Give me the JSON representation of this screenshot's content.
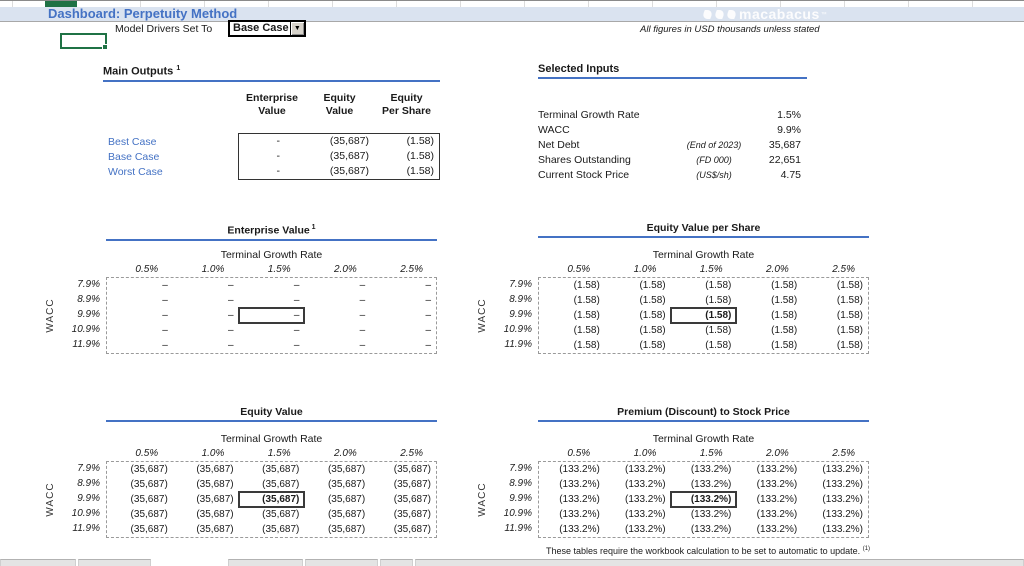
{
  "header": {
    "title": "Dashboard: Perpetuity Method",
    "logo_text": "macabacus",
    "logo_tm": "™",
    "model_drivers_label": "Model Drivers Set To",
    "model_drivers_value": "Base Case",
    "dropdown_arrow": "▼",
    "figures_note": "All figures in USD thousands unless stated"
  },
  "main_outputs": {
    "title": "Main Outputs",
    "title_sup": "1",
    "col_headers": [
      {
        "line1": "Enterprise",
        "line2": "Value"
      },
      {
        "line1": "Equity",
        "line2": "Value"
      },
      {
        "line1": "Equity",
        "line2": "Per Share"
      }
    ],
    "rows": [
      {
        "label": "Best Case",
        "ev": "-",
        "eqv": "(35,687)",
        "eps": "(1.58)"
      },
      {
        "label": "Base Case",
        "ev": "-",
        "eqv": "(35,687)",
        "eps": "(1.58)"
      },
      {
        "label": "Worst Case",
        "ev": "-",
        "eqv": "(35,687)",
        "eps": "(1.58)"
      }
    ]
  },
  "selected_inputs": {
    "title": "Selected Inputs",
    "rows": [
      {
        "label": "Terminal Growth Rate",
        "note": "",
        "value": "1.5%"
      },
      {
        "label": "WACC",
        "note": "",
        "value": "9.9%"
      },
      {
        "label": "Net Debt",
        "note": "(End of 2023)",
        "value": "35,687"
      },
      {
        "label": "Shares Outstanding",
        "note": "(FD 000)",
        "value": "22,651"
      },
      {
        "label": "Current Stock Price",
        "note": "(US$/sh)",
        "value": "4.75"
      }
    ]
  },
  "sens_common": {
    "col_axis_label": "Terminal Growth Rate",
    "row_axis_label": "WACC",
    "cols": [
      "0.5%",
      "1.0%",
      "1.5%",
      "2.0%",
      "2.5%"
    ],
    "rows": [
      "7.9%",
      "8.9%",
      "9.9%",
      "10.9%",
      "11.9%"
    ],
    "highlight_row": 2,
    "highlight_col": 2
  },
  "sens_tables": [
    {
      "key": "enterprise_value",
      "title": "Enterprise Value",
      "title_sup": "1",
      "cell": "–",
      "bold_center": false
    },
    {
      "key": "equity_value_per_share",
      "title": "Equity Value per Share",
      "title_sup": "",
      "cell": "(1.58)",
      "bold_center": true
    },
    {
      "key": "equity_value",
      "title": "Equity Value",
      "title_sup": "",
      "cell": "(35,687)",
      "bold_center": true
    },
    {
      "key": "premium_discount",
      "title": "Premium (Discount) to Stock Price",
      "title_sup": "",
      "cell": "(133.2%)",
      "bold_center": true
    }
  ],
  "footnote": {
    "text": "These tables require the workbook calculation to be set to automatic to update.",
    "sup": "(1)"
  },
  "colors": {
    "accent_blue": "#4472c4",
    "band_blue": "#dae3f0",
    "excel_green": "#1f7245"
  }
}
